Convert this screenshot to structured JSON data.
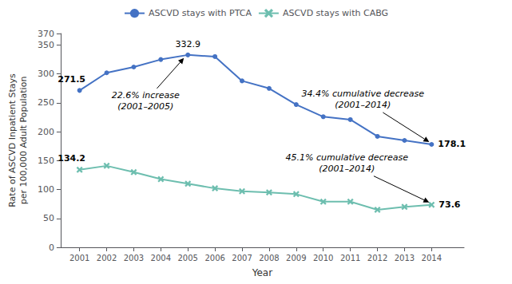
{
  "chart_data": {
    "type": "line",
    "x": [
      2001,
      2002,
      2003,
      2004,
      2005,
      2006,
      2007,
      2008,
      2009,
      2010,
      2011,
      2012,
      2013,
      2014
    ],
    "xlabel": "Year",
    "ylabel": "Rate of ASCVD Inpatient Stays\nper 100,000 Adult Population",
    "xlim": [
      2000.3,
      2015.2
    ],
    "xticks": [
      2001,
      2002,
      2003,
      2004,
      2005,
      2006,
      2007,
      2008,
      2009,
      2010,
      2011,
      2012,
      2013,
      2014
    ],
    "ylim": [
      0,
      370
    ],
    "yticks": [
      0,
      50,
      100,
      150,
      200,
      250,
      300,
      350
    ],
    "grid": false,
    "legend": "top",
    "series": [
      {
        "name": "ASCVD stays with PTCA",
        "color": "#4472C4",
        "marker": "circle",
        "values": [
          271.5,
          302.0,
          312.0,
          325.0,
          332.9,
          330.0,
          288.0,
          275.0,
          247.0,
          226.0,
          221.0,
          192.0,
          185.0,
          178.1
        ],
        "value_labels": [
          "271.5",
          null,
          null,
          null,
          "332.9",
          null,
          null,
          null,
          null,
          null,
          null,
          null,
          null,
          "178.1"
        ]
      },
      {
        "name": "ASCVD stays with CABG",
        "color": "#6DBEAF",
        "marker": "x",
        "values": [
          134.2,
          141.0,
          130.0,
          118.0,
          110.0,
          102.0,
          97.0,
          95.0,
          92.0,
          79.0,
          79.0,
          65.0,
          70.0,
          73.6
        ],
        "value_labels": [
          "134.2",
          null,
          null,
          null,
          null,
          null,
          null,
          null,
          null,
          null,
          null,
          null,
          null,
          "73.6"
        ]
      }
    ],
    "annotations": [
      {
        "text": "22.6% increase\n(2001–2005)",
        "series": "ASCVD stays with PTCA",
        "x": 2005
      },
      {
        "text": "34.4% cumulative decrease\n(2001–2014)",
        "series": "ASCVD stays with PTCA",
        "x": 2014
      },
      {
        "text": "45.1% cumulative decrease\n(2001–2014)",
        "series": "ASCVD stays with CABG",
        "x": 2014
      }
    ]
  }
}
